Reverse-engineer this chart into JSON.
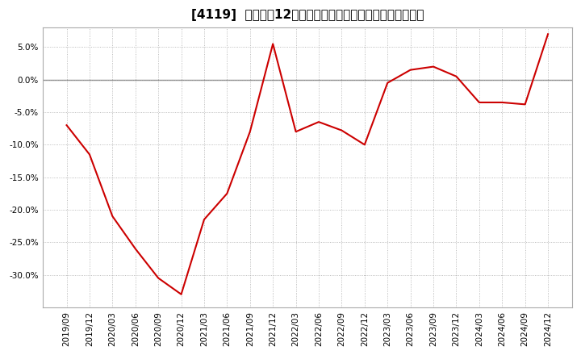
{
  "title": "[4119]  売上高の12か月移動合計の対前年同期増減率の推移",
  "x_labels": [
    "2019/09",
    "2019/12",
    "2020/03",
    "2020/06",
    "2020/09",
    "2020/12",
    "2021/03",
    "2021/06",
    "2021/09",
    "2021/12",
    "2022/03",
    "2022/06",
    "2022/09",
    "2022/12",
    "2023/03",
    "2023/06",
    "2023/09",
    "2023/12",
    "2024/03",
    "2024/06",
    "2024/09",
    "2024/12"
  ],
  "y_values": [
    -7.0,
    -11.5,
    -21.0,
    -26.0,
    -30.5,
    -33.0,
    -21.5,
    -17.5,
    -8.0,
    5.5,
    -8.0,
    -6.5,
    -7.8,
    -10.0,
    -0.5,
    1.5,
    2.0,
    0.5,
    -3.5,
    -3.5,
    -3.8,
    7.0
  ],
  "line_color": "#cc0000",
  "background_color": "#ffffff",
  "plot_bg_color": "#ffffff",
  "grid_color": "#aaaaaa",
  "ylim": [
    -35,
    8
  ],
  "yticks": [
    -30,
    -25,
    -20,
    -15,
    -10,
    -5,
    0,
    5
  ],
  "title_fontsize": 11,
  "axis_fontsize": 7.5,
  "zero_line_color": "#888888"
}
